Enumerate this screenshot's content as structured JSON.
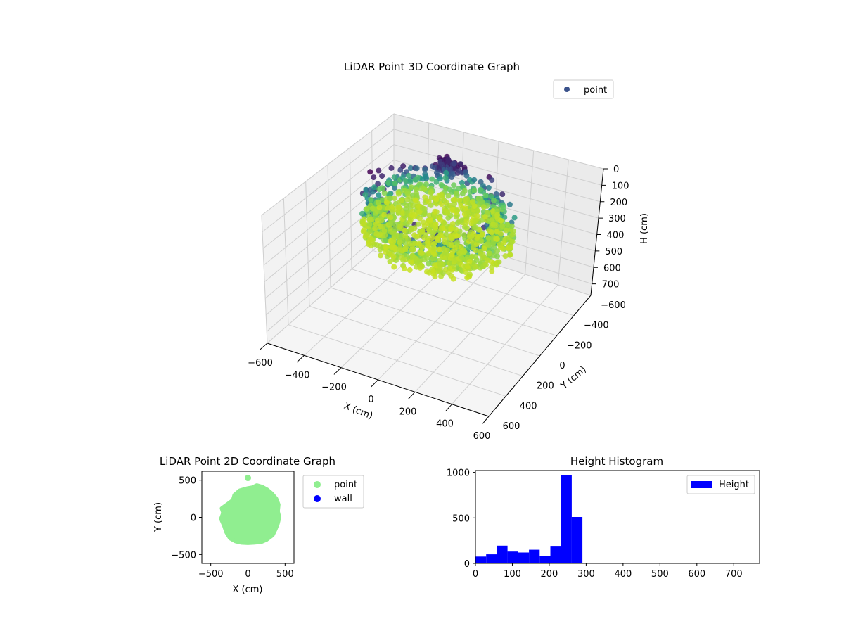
{
  "colors": {
    "point_2d": "#90ee90",
    "wall_2d": "#0000ff",
    "hist_bar": "#0000ff",
    "legend_point_3d": "#3b528b",
    "colormap": [
      "#440154",
      "#3b528b",
      "#21918c",
      "#5ec962",
      "#9bd93c",
      "#c8e020"
    ]
  },
  "chart_data": [
    {
      "type": "scatter",
      "subtype": "3d",
      "colormap_name": "viridis",
      "title": "LiDAR Point 3D Coordinate Graph",
      "xlabel": "X (cm)",
      "ylabel": "Y (cm)",
      "zlabel": "H (cm)",
      "xlim": [
        -600,
        600
      ],
      "ylim": [
        -600,
        600
      ],
      "zlim": [
        0,
        770
      ],
      "z_inverted": true,
      "xticks": [
        "−600",
        "−400",
        "−200",
        "0",
        "200",
        "400",
        "600"
      ],
      "yticks": [
        "−600",
        "−400",
        "−200",
        "0",
        "200",
        "400",
        "600"
      ],
      "zticks": [
        "0",
        "100",
        "200",
        "300",
        "400",
        "500",
        "600",
        "700"
      ],
      "grid": true,
      "legend": {
        "position": "top-right",
        "entries": [
          "point"
        ]
      },
      "series": [
        {
          "name": "point",
          "shape": "ring-cloud",
          "x_range": [
            -350,
            420
          ],
          "y_range": [
            -350,
            420
          ],
          "h_range": [
            40,
            290
          ],
          "center": [
            30,
            40
          ]
        }
      ]
    },
    {
      "type": "scatter",
      "title": "LiDAR Point 2D Coordinate Graph",
      "xlabel": "X (cm)",
      "ylabel": "Y (cm)",
      "xlim": [
        -620,
        620
      ],
      "ylim": [
        -620,
        620
      ],
      "xticks": [
        "−500",
        "0",
        "500"
      ],
      "yticks": [
        "−500",
        "0",
        "500"
      ],
      "legend": {
        "position": "outside-right",
        "entries": [
          "point",
          "wall"
        ]
      },
      "series": [
        {
          "name": "point",
          "outline": [
            [
              0,
              390
            ],
            [
              60,
              400
            ],
            [
              120,
              430
            ],
            [
              190,
              410
            ],
            [
              260,
              370
            ],
            [
              320,
              320
            ],
            [
              380,
              250
            ],
            [
              410,
              170
            ],
            [
              400,
              80
            ],
            [
              420,
              0
            ],
            [
              400,
              -80
            ],
            [
              370,
              -160
            ],
            [
              330,
              -240
            ],
            [
              250,
              -300
            ],
            [
              180,
              -330
            ],
            [
              80,
              -340
            ],
            [
              0,
              -345
            ],
            [
              -90,
              -340
            ],
            [
              -170,
              -320
            ],
            [
              -240,
              -280
            ],
            [
              -290,
              -200
            ],
            [
              -320,
              -110
            ],
            [
              -360,
              -20
            ],
            [
              -330,
              60
            ],
            [
              -350,
              120
            ],
            [
              -280,
              170
            ],
            [
              -200,
              230
            ],
            [
              -180,
              300
            ],
            [
              -110,
              360
            ],
            [
              -40,
              380
            ]
          ],
          "outliers": [
            [
              0,
              530
            ]
          ]
        },
        {
          "name": "wall",
          "outline": [],
          "outliers": []
        }
      ]
    },
    {
      "type": "bar",
      "subtype": "histogram",
      "title": "Height Histogram",
      "xlim": [
        0,
        770
      ],
      "ylim": [
        0,
        1020
      ],
      "xticks": [
        "0",
        "100",
        "200",
        "300",
        "400",
        "500",
        "600",
        "700"
      ],
      "yticks": [
        "0",
        "500",
        "1000"
      ],
      "legend": {
        "position": "top-right",
        "entries": [
          "Height"
        ]
      },
      "bin_width": 29,
      "bin_start": 0,
      "values": [
        75,
        100,
        195,
        130,
        120,
        150,
        85,
        185,
        970,
        510,
        0,
        0,
        0,
        0,
        0,
        0,
        0,
        0,
        0,
        0,
        0,
        0,
        0,
        0,
        0,
        0
      ]
    }
  ]
}
